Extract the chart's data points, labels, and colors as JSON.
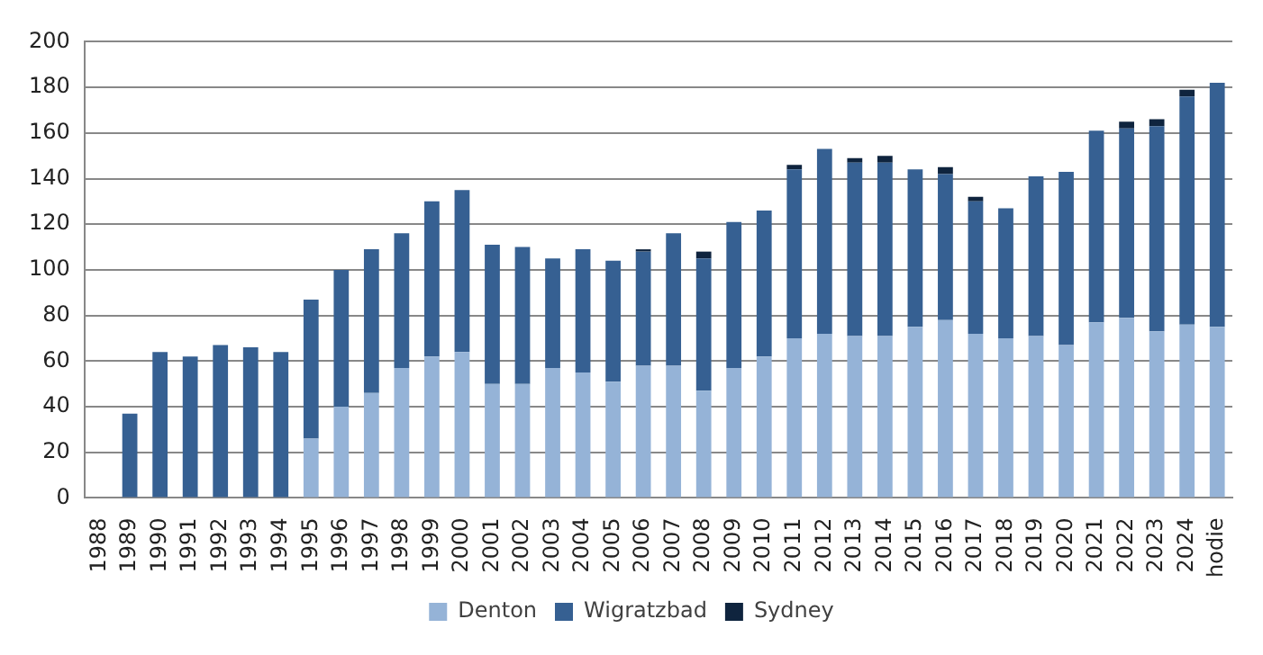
{
  "chart_data": {
    "type": "bar",
    "stacked": true,
    "categories": [
      "1988",
      "1989",
      "1990",
      "1991",
      "1992",
      "1993",
      "1994",
      "1995",
      "1996",
      "1997",
      "1998",
      "1999",
      "2000",
      "2001",
      "2002",
      "2003",
      "2004",
      "2005",
      "2006",
      "2007",
      "2008",
      "2009",
      "2010",
      "2011",
      "2012",
      "2013",
      "2014",
      "2015",
      "2016",
      "2017",
      "2018",
      "2019",
      "2020",
      "2021",
      "2022",
      "2023",
      "2024",
      "hodie"
    ],
    "series": [
      {
        "name": "Denton",
        "color": "#95b3d7",
        "values": [
          null,
          null,
          null,
          null,
          null,
          null,
          null,
          26,
          40,
          46,
          57,
          62,
          64,
          50,
          50,
          57,
          55,
          51,
          58,
          58,
          47,
          57,
          62,
          70,
          72,
          71,
          71,
          75,
          78,
          72,
          70,
          71,
          67,
          77,
          79,
          73,
          76,
          75
        ]
      },
      {
        "name": "Wigratzbad",
        "color": "#366092",
        "values": [
          null,
          37,
          64,
          62,
          67,
          66,
          64,
          61,
          60,
          63,
          59,
          68,
          71,
          61,
          60,
          48,
          54,
          53,
          50,
          58,
          58,
          64,
          64,
          74,
          81,
          76,
          76,
          69,
          64,
          58,
          57,
          70,
          76,
          84,
          83,
          90,
          100,
          107
        ]
      },
      {
        "name": "Sydney",
        "color": "#0f243e",
        "values": [
          null,
          null,
          null,
          null,
          null,
          null,
          null,
          null,
          null,
          null,
          null,
          null,
          null,
          null,
          null,
          null,
          null,
          null,
          1,
          null,
          3,
          null,
          null,
          2,
          null,
          2,
          3,
          null,
          3,
          2,
          null,
          null,
          null,
          null,
          3,
          3,
          3,
          null
        ]
      }
    ],
    "ylim": [
      0,
      200
    ],
    "yticks": [
      0,
      20,
      40,
      60,
      80,
      100,
      120,
      140,
      160,
      180,
      200
    ],
    "grid": "y",
    "legend": "bottom"
  }
}
